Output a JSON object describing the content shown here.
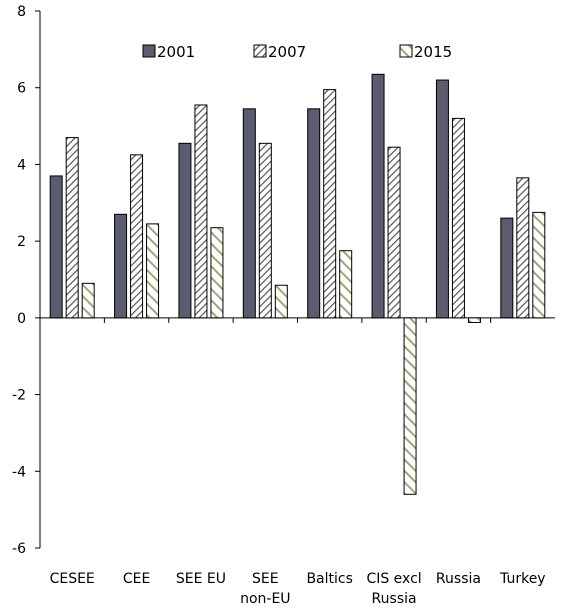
{
  "chart_data": {
    "type": "bar",
    "title": "",
    "xlabel": "",
    "ylabel": "",
    "ylim": [
      -6,
      8
    ],
    "yticks": [
      -6,
      -4,
      -2,
      0,
      2,
      4,
      6,
      8
    ],
    "grid": false,
    "legend_position": "top",
    "categories": [
      [
        "CESEE"
      ],
      [
        "CEE"
      ],
      [
        "SEE EU"
      ],
      [
        "SEE",
        "non-EU"
      ],
      [
        "Baltics"
      ],
      [
        "CIS excl",
        "Russia"
      ],
      [
        "Russia"
      ],
      [
        "Turkey"
      ]
    ],
    "series": [
      {
        "name": "2001",
        "values": [
          3.7,
          2.7,
          4.55,
          5.45,
          5.45,
          6.35,
          6.2,
          2.6
        ],
        "color": "#5b5c70",
        "pattern": "solid"
      },
      {
        "name": "2007",
        "values": [
          4.7,
          4.25,
          5.55,
          4.55,
          5.95,
          4.45,
          5.2,
          3.65
        ],
        "color": "#555555",
        "pattern": "diagonal-dark"
      },
      {
        "name": "2015",
        "values": [
          0.9,
          2.45,
          2.35,
          0.85,
          1.75,
          -4.6,
          -0.12,
          2.75
        ],
        "color": "#9aa87a",
        "pattern": "diagonal-green"
      }
    ]
  }
}
